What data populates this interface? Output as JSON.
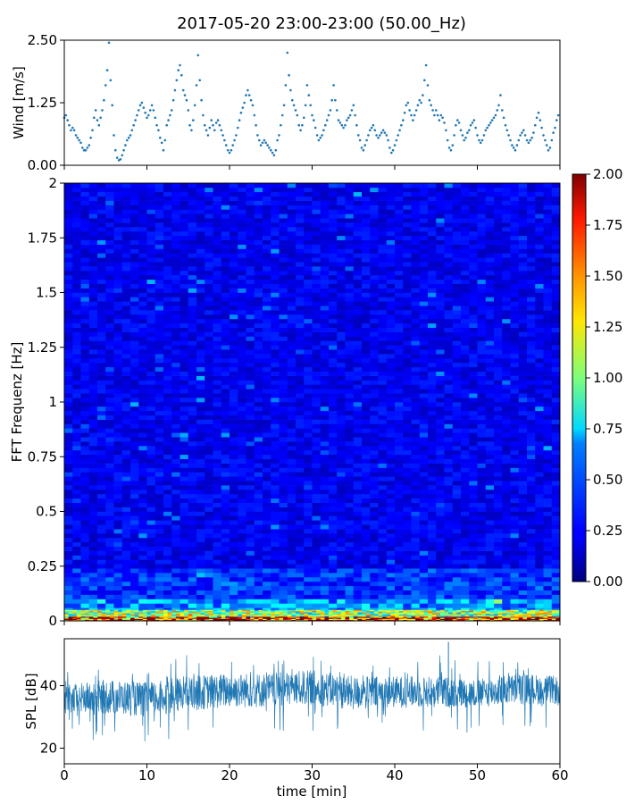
{
  "chart_data": [
    {
      "type": "scatter",
      "panel": "wind",
      "title": "2017-05-20 23:00-23:00 (50.00_Hz)",
      "ylabel": "Wind [m/s]",
      "xlim": [
        0,
        60
      ],
      "ylim": [
        0,
        2.5
      ],
      "yticks": [
        "0.00",
        "1.25",
        "2.50"
      ],
      "color": "#1f77b4",
      "points": [
        [
          0.0,
          0.95
        ],
        [
          0.2,
          1.0
        ],
        [
          0.4,
          0.9
        ],
        [
          0.6,
          0.8
        ],
        [
          0.8,
          0.7
        ],
        [
          1.0,
          0.75
        ],
        [
          1.2,
          0.7
        ],
        [
          1.4,
          0.6
        ],
        [
          1.6,
          0.55
        ],
        [
          1.8,
          0.5
        ],
        [
          2.0,
          0.45
        ],
        [
          2.2,
          0.35
        ],
        [
          2.4,
          0.3
        ],
        [
          2.6,
          0.3
        ],
        [
          2.8,
          0.35
        ],
        [
          3.0,
          0.4
        ],
        [
          3.2,
          0.55
        ],
        [
          3.4,
          0.7
        ],
        [
          3.6,
          0.95
        ],
        [
          3.8,
          1.1
        ],
        [
          4.0,
          0.9
        ],
        [
          4.2,
          0.8
        ],
        [
          4.4,
          0.95
        ],
        [
          4.6,
          1.1
        ],
        [
          4.8,
          1.3
        ],
        [
          5.0,
          1.6
        ],
        [
          5.2,
          1.9
        ],
        [
          5.4,
          2.45
        ],
        [
          5.6,
          1.7
        ],
        [
          5.8,
          1.2
        ],
        [
          6.0,
          0.6
        ],
        [
          6.2,
          0.3
        ],
        [
          6.4,
          0.15
        ],
        [
          6.6,
          0.1
        ],
        [
          6.8,
          0.12
        ],
        [
          7.0,
          0.2
        ],
        [
          7.2,
          0.3
        ],
        [
          7.4,
          0.4
        ],
        [
          7.6,
          0.5
        ],
        [
          7.8,
          0.55
        ],
        [
          8.0,
          0.6
        ],
        [
          8.2,
          0.7
        ],
        [
          8.4,
          0.8
        ],
        [
          8.6,
          0.9
        ],
        [
          8.8,
          1.0
        ],
        [
          9.0,
          1.1
        ],
        [
          9.2,
          1.2
        ],
        [
          9.4,
          1.25
        ],
        [
          9.6,
          1.15
        ],
        [
          9.8,
          1.05
        ],
        [
          10.0,
          0.95
        ],
        [
          10.2,
          1.0
        ],
        [
          10.4,
          1.1
        ],
        [
          10.6,
          1.2
        ],
        [
          10.8,
          1.1
        ],
        [
          11.0,
          0.95
        ],
        [
          11.2,
          0.8
        ],
        [
          11.4,
          0.7
        ],
        [
          11.6,
          0.55
        ],
        [
          11.8,
          0.45
        ],
        [
          12.0,
          0.3
        ],
        [
          12.2,
          0.5
        ],
        [
          12.4,
          0.8
        ],
        [
          12.6,
          0.9
        ],
        [
          12.8,
          1.0
        ],
        [
          13.0,
          1.1
        ],
        [
          13.2,
          1.3
        ],
        [
          13.4,
          1.5
        ],
        [
          13.6,
          1.7
        ],
        [
          13.8,
          1.9
        ],
        [
          14.0,
          2.0
        ],
        [
          14.2,
          1.8
        ],
        [
          14.4,
          1.5
        ],
        [
          14.6,
          1.4
        ],
        [
          14.8,
          1.3
        ],
        [
          15.0,
          1.1
        ],
        [
          15.2,
          0.8
        ],
        [
          15.4,
          0.7
        ],
        [
          15.6,
          0.9
        ],
        [
          15.8,
          1.2
        ],
        [
          16.0,
          1.6
        ],
        [
          16.2,
          2.2
        ],
        [
          16.4,
          1.7
        ],
        [
          16.6,
          1.3
        ],
        [
          16.8,
          1.0
        ],
        [
          17.0,
          0.8
        ],
        [
          17.2,
          0.7
        ],
        [
          17.4,
          0.6
        ],
        [
          17.6,
          0.75
        ],
        [
          17.8,
          0.9
        ],
        [
          18.0,
          0.8
        ],
        [
          18.2,
          0.7
        ],
        [
          18.4,
          0.85
        ],
        [
          18.6,
          0.9
        ],
        [
          18.8,
          0.8
        ],
        [
          19.0,
          0.7
        ],
        [
          19.2,
          0.6
        ],
        [
          19.4,
          0.5
        ],
        [
          19.6,
          0.4
        ],
        [
          19.8,
          0.3
        ],
        [
          20.0,
          0.25
        ],
        [
          20.2,
          0.3
        ],
        [
          20.4,
          0.4
        ],
        [
          20.6,
          0.5
        ],
        [
          20.8,
          0.6
        ],
        [
          21.0,
          0.75
        ],
        [
          21.2,
          0.9
        ],
        [
          21.4,
          1.05
        ],
        [
          21.6,
          1.15
        ],
        [
          21.8,
          1.25
        ],
        [
          22.0,
          1.4
        ],
        [
          22.2,
          1.5
        ],
        [
          22.4,
          1.4
        ],
        [
          22.6,
          1.3
        ],
        [
          22.8,
          1.2
        ],
        [
          23.0,
          1.0
        ],
        [
          23.2,
          0.8
        ],
        [
          23.4,
          0.6
        ],
        [
          23.6,
          0.5
        ],
        [
          23.8,
          0.4
        ],
        [
          24.0,
          0.45
        ],
        [
          24.2,
          0.5
        ],
        [
          24.4,
          0.45
        ],
        [
          24.6,
          0.4
        ],
        [
          24.8,
          0.35
        ],
        [
          25.0,
          0.3
        ],
        [
          25.2,
          0.25
        ],
        [
          25.4,
          0.2
        ],
        [
          25.6,
          0.3
        ],
        [
          25.8,
          0.5
        ],
        [
          26.0,
          0.6
        ],
        [
          26.2,
          0.8
        ],
        [
          26.4,
          1.0
        ],
        [
          26.6,
          1.2
        ],
        [
          26.8,
          1.6
        ],
        [
          27.0,
          2.25
        ],
        [
          27.2,
          1.8
        ],
        [
          27.4,
          1.5
        ],
        [
          27.6,
          1.3
        ],
        [
          27.8,
          1.2
        ],
        [
          28.0,
          1.1
        ],
        [
          28.2,
          1.0
        ],
        [
          28.4,
          0.8
        ],
        [
          28.6,
          0.7
        ],
        [
          28.8,
          0.8
        ],
        [
          29.0,
          0.95
        ],
        [
          29.2,
          1.2
        ],
        [
          29.4,
          1.6
        ],
        [
          29.6,
          1.4
        ],
        [
          29.8,
          1.2
        ],
        [
          30.0,
          1.0
        ],
        [
          30.2,
          0.9
        ],
        [
          30.4,
          0.75
        ],
        [
          30.6,
          0.6
        ],
        [
          30.8,
          0.5
        ],
        [
          31.0,
          0.55
        ],
        [
          31.2,
          0.6
        ],
        [
          31.4,
          0.7
        ],
        [
          31.6,
          0.8
        ],
        [
          31.8,
          0.9
        ],
        [
          32.0,
          1.0
        ],
        [
          32.2,
          1.1
        ],
        [
          32.4,
          1.3
        ],
        [
          32.6,
          1.6
        ],
        [
          32.8,
          1.3
        ],
        [
          33.0,
          1.1
        ],
        [
          33.2,
          0.9
        ],
        [
          33.4,
          0.85
        ],
        [
          33.6,
          0.8
        ],
        [
          33.8,
          0.75
        ],
        [
          34.0,
          0.8
        ],
        [
          34.2,
          0.9
        ],
        [
          34.4,
          0.95
        ],
        [
          34.6,
          1.0
        ],
        [
          34.8,
          1.1
        ],
        [
          35.0,
          1.2
        ],
        [
          35.2,
          1.0
        ],
        [
          35.4,
          0.8
        ],
        [
          35.6,
          0.6
        ],
        [
          35.8,
          0.5
        ],
        [
          36.0,
          0.35
        ],
        [
          36.2,
          0.3
        ],
        [
          36.4,
          0.4
        ],
        [
          36.6,
          0.5
        ],
        [
          36.8,
          0.6
        ],
        [
          37.0,
          0.7
        ],
        [
          37.2,
          0.75
        ],
        [
          37.4,
          0.8
        ],
        [
          37.6,
          0.7
        ],
        [
          37.8,
          0.6
        ],
        [
          38.0,
          0.55
        ],
        [
          38.2,
          0.6
        ],
        [
          38.4,
          0.65
        ],
        [
          38.6,
          0.7
        ],
        [
          38.8,
          0.65
        ],
        [
          39.0,
          0.6
        ],
        [
          39.2,
          0.5
        ],
        [
          39.4,
          0.35
        ],
        [
          39.6,
          0.25
        ],
        [
          39.8,
          0.3
        ],
        [
          40.0,
          0.4
        ],
        [
          40.2,
          0.5
        ],
        [
          40.4,
          0.6
        ],
        [
          40.6,
          0.7
        ],
        [
          40.8,
          0.8
        ],
        [
          41.0,
          0.9
        ],
        [
          41.2,
          1.05
        ],
        [
          41.4,
          1.2
        ],
        [
          41.6,
          1.25
        ],
        [
          41.8,
          1.1
        ],
        [
          42.0,
          1.0
        ],
        [
          42.2,
          0.9
        ],
        [
          42.4,
          1.0
        ],
        [
          42.6,
          1.1
        ],
        [
          42.8,
          1.2
        ],
        [
          43.0,
          1.3
        ],
        [
          43.2,
          1.25
        ],
        [
          43.4,
          1.4
        ],
        [
          43.6,
          1.7
        ],
        [
          43.8,
          2.0
        ],
        [
          44.0,
          1.6
        ],
        [
          44.2,
          1.3
        ],
        [
          44.4,
          1.2
        ],
        [
          44.6,
          1.1
        ],
        [
          44.8,
          1.0
        ],
        [
          45.0,
          1.1
        ],
        [
          45.2,
          1.0
        ],
        [
          45.4,
          0.9
        ],
        [
          45.6,
          1.0
        ],
        [
          45.8,
          0.95
        ],
        [
          46.0,
          0.85
        ],
        [
          46.2,
          0.7
        ],
        [
          46.4,
          0.5
        ],
        [
          46.6,
          0.35
        ],
        [
          46.8,
          0.3
        ],
        [
          47.0,
          0.4
        ],
        [
          47.2,
          0.6
        ],
        [
          47.4,
          0.8
        ],
        [
          47.6,
          0.9
        ],
        [
          47.8,
          0.85
        ],
        [
          48.0,
          0.7
        ],
        [
          48.2,
          0.6
        ],
        [
          48.4,
          0.5
        ],
        [
          48.6,
          0.55
        ],
        [
          48.8,
          0.65
        ],
        [
          49.0,
          0.7
        ],
        [
          49.2,
          0.8
        ],
        [
          49.4,
          0.85
        ],
        [
          49.6,
          0.9
        ],
        [
          49.8,
          0.75
        ],
        [
          50.0,
          0.6
        ],
        [
          50.2,
          0.5
        ],
        [
          50.4,
          0.45
        ],
        [
          50.6,
          0.5
        ],
        [
          50.8,
          0.6
        ],
        [
          51.0,
          0.7
        ],
        [
          51.2,
          0.75
        ],
        [
          51.4,
          0.8
        ],
        [
          51.6,
          0.85
        ],
        [
          51.8,
          0.9
        ],
        [
          52.0,
          0.95
        ],
        [
          52.2,
          1.0
        ],
        [
          52.4,
          1.1
        ],
        [
          52.6,
          1.2
        ],
        [
          52.8,
          1.4
        ],
        [
          53.0,
          1.1
        ],
        [
          53.2,
          0.95
        ],
        [
          53.4,
          0.8
        ],
        [
          53.6,
          0.7
        ],
        [
          53.8,
          0.6
        ],
        [
          54.0,
          0.5
        ],
        [
          54.2,
          0.4
        ],
        [
          54.4,
          0.35
        ],
        [
          54.6,
          0.3
        ],
        [
          54.8,
          0.4
        ],
        [
          55.0,
          0.5
        ],
        [
          55.2,
          0.6
        ],
        [
          55.4,
          0.65
        ],
        [
          55.6,
          0.7
        ],
        [
          55.8,
          0.6
        ],
        [
          56.0,
          0.5
        ],
        [
          56.2,
          0.45
        ],
        [
          56.4,
          0.5
        ],
        [
          56.6,
          0.55
        ],
        [
          56.8,
          0.65
        ],
        [
          57.0,
          0.8
        ],
        [
          57.2,
          0.95
        ],
        [
          57.4,
          1.05
        ],
        [
          57.6,
          0.9
        ],
        [
          57.8,
          0.75
        ],
        [
          58.0,
          0.6
        ],
        [
          58.2,
          0.5
        ],
        [
          58.4,
          0.4
        ],
        [
          58.6,
          0.3
        ],
        [
          58.8,
          0.35
        ],
        [
          59.0,
          0.5
        ],
        [
          59.2,
          0.65
        ],
        [
          59.4,
          0.75
        ],
        [
          59.6,
          0.9
        ],
        [
          59.8,
          1.0
        ]
      ]
    },
    {
      "type": "heatmap",
      "panel": "spectrogram",
      "ylabel": "FFT Frequenz [Hz]",
      "xlim": [
        0,
        60
      ],
      "ylim": [
        0,
        2
      ],
      "yticks": [
        "0",
        "0.25",
        "0.5",
        "0.75",
        "1",
        "1.25",
        "1.5",
        "1.75",
        "2"
      ],
      "colormap": "jet",
      "colorbar": {
        "vmin": 0.0,
        "vmax": 2.0,
        "ticks": [
          "0.00",
          "0.25",
          "0.50",
          "0.75",
          "1.00",
          "1.25",
          "1.50",
          "1.75",
          "2.00"
        ]
      },
      "bands": [
        {
          "freq": [
            0.0,
            0.02
          ],
          "level": 1.8
        },
        {
          "freq": [
            0.02,
            0.05
          ],
          "level": 1.1
        },
        {
          "freq": [
            0.05,
            0.1
          ],
          "level": 0.55
        },
        {
          "freq": [
            0.1,
            0.25
          ],
          "level": 0.35
        },
        {
          "freq": [
            0.25,
            2.0
          ],
          "level": 0.22
        }
      ]
    },
    {
      "type": "line",
      "panel": "spl",
      "ylabel": "SPL [dB]",
      "xlabel": "time [min]",
      "xlim": [
        0,
        60
      ],
      "ylim": [
        15,
        55
      ],
      "yticks": [
        "20",
        "40"
      ],
      "xticks": [
        "0",
        "10",
        "20",
        "30",
        "40",
        "50",
        "60"
      ],
      "color": "#1f77b4",
      "mean_envelope": {
        "x": [
          0,
          5,
          10,
          15,
          20,
          25,
          30,
          35,
          40,
          45,
          50,
          55,
          60
        ],
        "low": [
          31,
          31,
          30,
          32,
          33,
          33,
          34,
          32,
          33,
          33,
          33,
          34,
          34
        ],
        "high": [
          40,
          42,
          41,
          43,
          44,
          44,
          45,
          43,
          43,
          43,
          42,
          44,
          43
        ],
        "min": [
          22,
          22,
          21,
          22,
          23,
          24,
          25,
          24,
          25,
          25,
          25,
          25,
          26
        ],
        "max": [
          45,
          46,
          45,
          50,
          49,
          49,
          50,
          47,
          48,
          54,
          48,
          50,
          48
        ]
      }
    }
  ]
}
